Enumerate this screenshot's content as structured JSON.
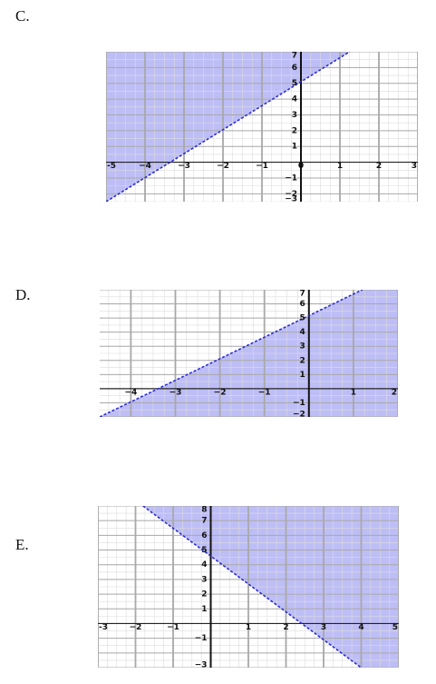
{
  "chart_data": [
    {
      "type": "area",
      "label": "C.",
      "xlim": [
        -5,
        3
      ],
      "ylim": [
        -2.5,
        7
      ],
      "boundary": {
        "x": [
          -5,
          1.25
        ],
        "y": [
          -2.5,
          7
        ],
        "style": "dashed"
      },
      "shaded": "above-left",
      "fill_color": "#b7b7f5",
      "line_color": "#2b2bd6",
      "grid": true,
      "x_ticks": [
        -5,
        -4,
        -3,
        -2,
        -1,
        0,
        1,
        2,
        3
      ],
      "x_tick_labels": [
        "-5",
        "−4",
        "−3",
        "−2",
        "−1",
        "0",
        "1",
        "2",
        "3"
      ],
      "y_ticks": [
        7,
        6,
        5,
        4,
        3,
        2,
        1,
        -1,
        -2,
        -3
      ],
      "y_tick_labels": [
        "7",
        "6",
        "5",
        "4",
        "3",
        "2",
        "1",
        "−1",
        "−2",
        "−3"
      ]
    },
    {
      "type": "area",
      "label": "D.",
      "xlim": [
        -4.7,
        2
      ],
      "ylim": [
        -2,
        7
      ],
      "boundary": {
        "x": [
          -4.7,
          1.2
        ],
        "y": [
          -2,
          7
        ],
        "style": "dashed"
      },
      "shaded": "below-right",
      "fill_color": "#b7b7f5",
      "line_color": "#2b2bd6",
      "grid": true,
      "x_ticks": [
        -4,
        -3,
        -2,
        -1,
        1,
        2
      ],
      "x_tick_labels": [
        "−4",
        "−3",
        "−2",
        "−1",
        "1",
        "2"
      ],
      "y_ticks": [
        7,
        6,
        5,
        4,
        3,
        2,
        1,
        -1,
        -2
      ],
      "y_tick_labels": [
        "7",
        "6",
        "5",
        "4",
        "3",
        "2",
        "1",
        "−1",
        "−2"
      ]
    },
    {
      "type": "area",
      "label": "E.",
      "xlim": [
        -3,
        5
      ],
      "ylim": [
        -3,
        8
      ],
      "boundary": {
        "x": [
          -1.8,
          4
        ],
        "y": [
          8,
          -3
        ],
        "style": "dashed"
      },
      "shaded": "above-right",
      "fill_color": "#b7b7f5",
      "line_color": "#2b2bd6",
      "grid": true,
      "x_ticks": [
        -3,
        -2,
        -1,
        1,
        2,
        3,
        4,
        5
      ],
      "x_tick_labels": [
        "-3",
        "−2",
        "−1",
        "1",
        "2",
        "3",
        "4",
        "5"
      ],
      "y_ticks": [
        8,
        7,
        6,
        5,
        4,
        3,
        2,
        1,
        -1,
        -3
      ],
      "y_tick_labels": [
        "8",
        "7",
        "6",
        "5",
        "4",
        "3",
        "2",
        "1",
        "−1",
        "−3"
      ]
    }
  ]
}
